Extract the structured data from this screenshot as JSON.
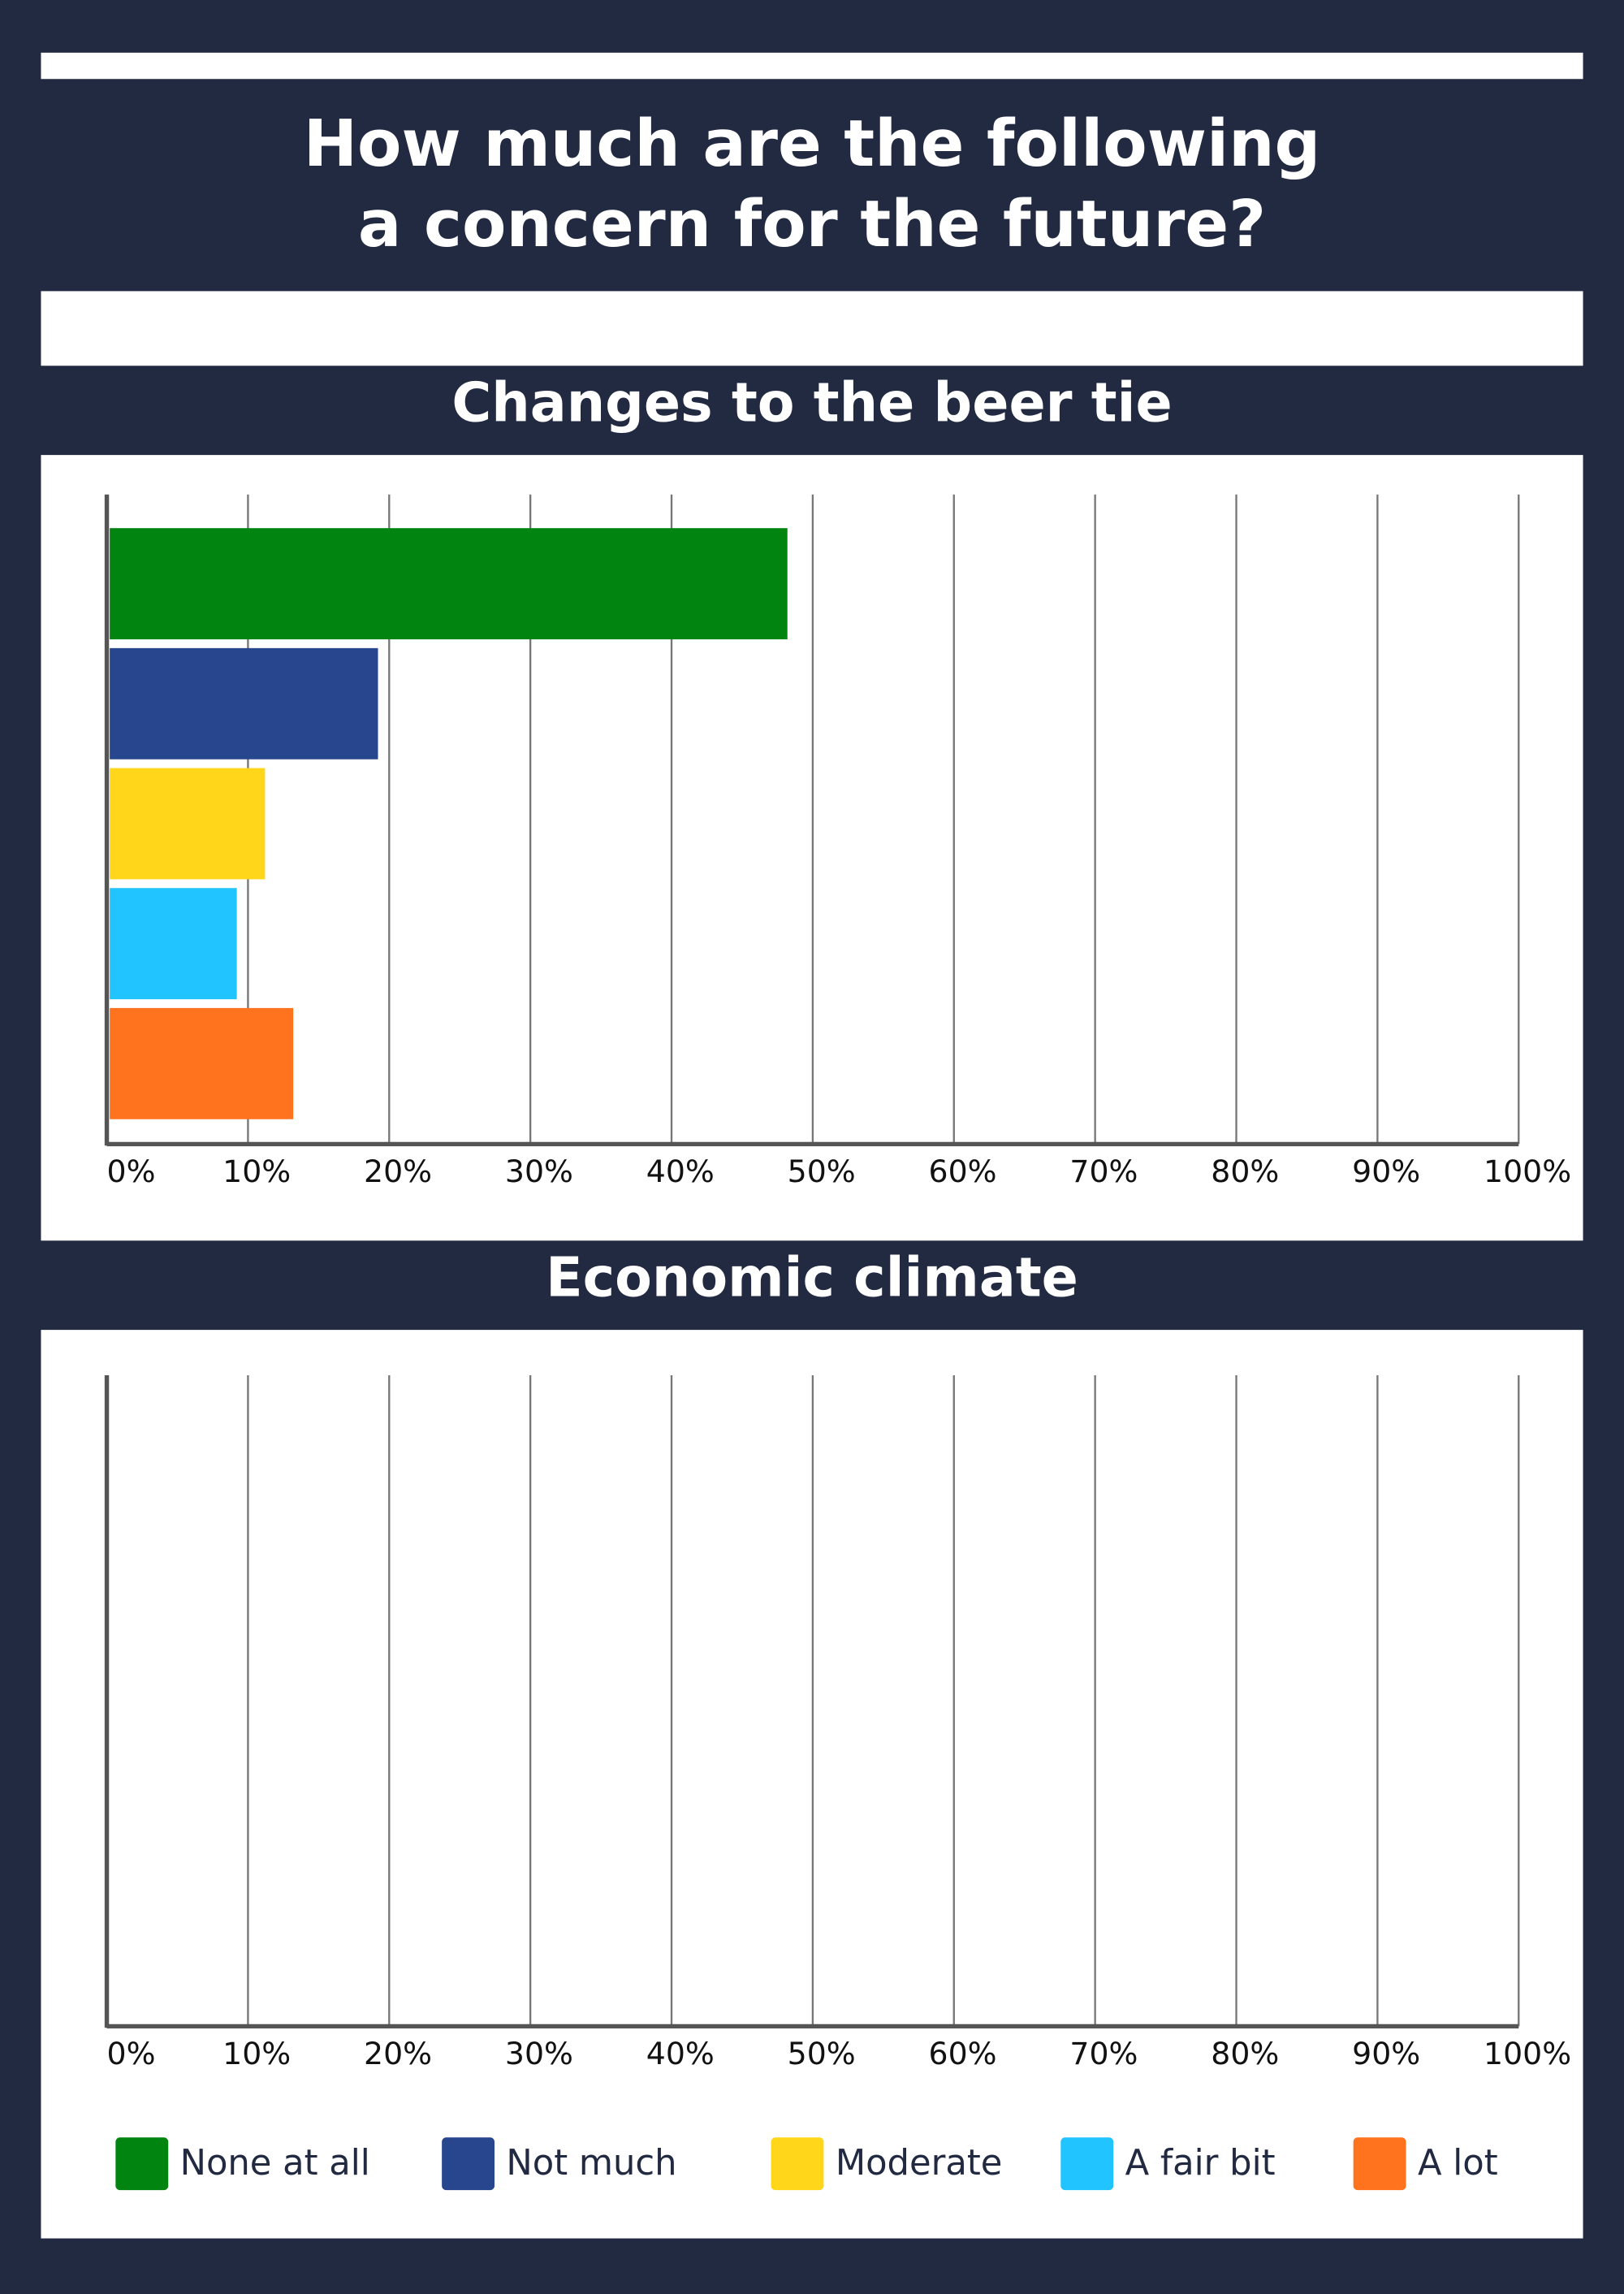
{
  "title": "How much are the following\na concern for the future?",
  "chart_data": [
    {
      "type": "bar",
      "orientation": "horizontal",
      "title": "Changes to the beer tie",
      "series": [
        {
          "name": "None at all",
          "color": "#028510",
          "values": [
            48
          ]
        },
        {
          "name": "Not much",
          "color": "#27468e",
          "values": [
            19
          ]
        },
        {
          "name": "Moderate",
          "color": "#ffd61a",
          "values": [
            11
          ]
        },
        {
          "name": "A fair bit",
          "color": "#22c4ff",
          "values": [
            9
          ]
        },
        {
          "name": "A lot",
          "color": "#ff731f",
          "values": [
            13
          ]
        }
      ],
      "xlim": [
        0,
        100
      ],
      "xticks": [
        {
          "value": 0,
          "label": "0%"
        },
        {
          "value": 10,
          "label": "10%"
        },
        {
          "value": 20,
          "label": "20%"
        },
        {
          "value": 30,
          "label": "30%"
        },
        {
          "value": 40,
          "label": "40%"
        },
        {
          "value": 50,
          "label": "50%"
        },
        {
          "value": 60,
          "label": "60%"
        },
        {
          "value": 70,
          "label": "70%"
        },
        {
          "value": 80,
          "label": "80%"
        },
        {
          "value": 90,
          "label": "90%"
        },
        {
          "value": 100,
          "label": "100%"
        }
      ],
      "grid": true
    },
    {
      "type": "bar",
      "orientation": "horizontal",
      "title": "Economic climate",
      "xlim": [
        0,
        100
      ],
      "xticks": [
        {
          "value": 0,
          "label": "0%"
        },
        {
          "value": 10,
          "label": "10%"
        },
        {
          "value": 20,
          "label": "20%"
        },
        {
          "value": 30,
          "label": "30%"
        },
        {
          "value": 40,
          "label": "40%"
        },
        {
          "value": 50,
          "label": "50%"
        },
        {
          "value": 60,
          "label": "60%"
        },
        {
          "value": 70,
          "label": "70%"
        },
        {
          "value": 80,
          "label": "80%"
        },
        {
          "value": 90,
          "label": "90%"
        },
        {
          "value": 100,
          "label": "100%"
        }
      ],
      "grid": true
    }
  ]
}
